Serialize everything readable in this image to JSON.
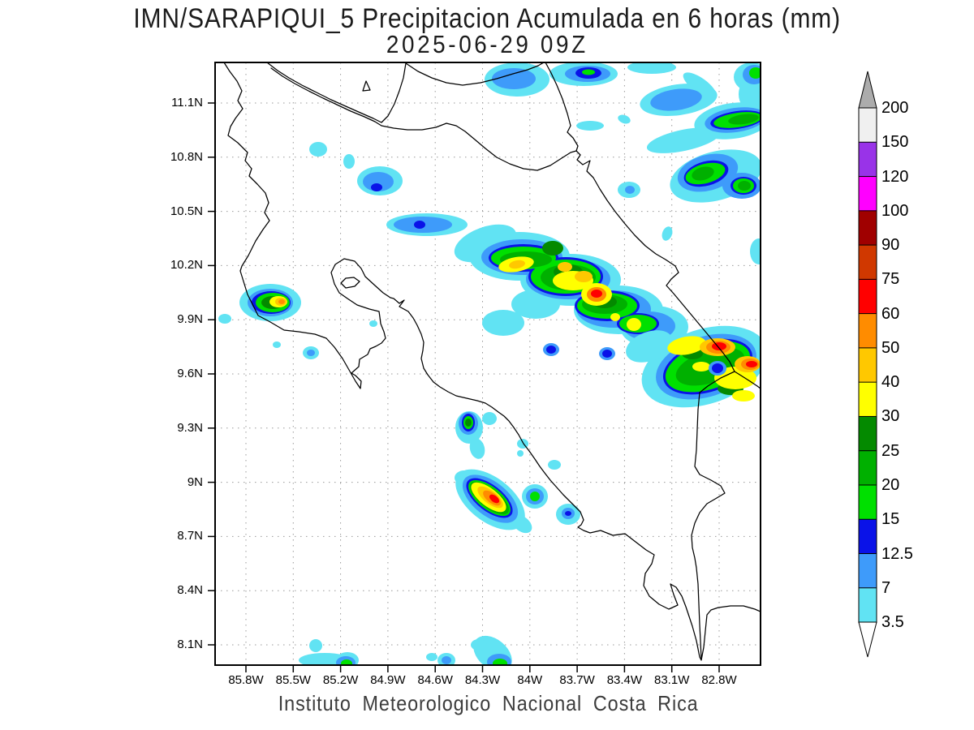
{
  "title": {
    "line1": "IMN/SARAPIQUI_5 Precipitacion Acumulada en 6 horas (mm)",
    "line2": "2025-06-29 09Z"
  },
  "footer": "Instituto Meteorologico Nacional Costa Rica",
  "axes": {
    "lat_ticks": [
      "11.1N",
      "10.8N",
      "10.5N",
      "10.2N",
      "9.9N",
      "9.6N",
      "9.3N",
      "9N",
      "8.7N",
      "8.4N",
      "8.1N"
    ],
    "lon_ticks": [
      "85.8W",
      "85.5W",
      "85.2W",
      "84.9W",
      "84.6W",
      "84.3W",
      "84W",
      "83.7W",
      "83.4W",
      "83.1W",
      "82.8W"
    ]
  },
  "colorbar": {
    "labels_top_to_bottom": [
      "200",
      "150",
      "120",
      "100",
      "90",
      "75",
      "60",
      "50",
      "40",
      "30",
      "25",
      "20",
      "15",
      "12.5",
      "7",
      "3.5"
    ],
    "segment_colors_top_to_bottom": [
      "#F0F0F0",
      "#9933E8",
      "#FF00FF",
      "#A00000",
      "#D03800",
      "#FF0000",
      "#FF8C00",
      "#FFC800",
      "#FFFF00",
      "#048A00",
      "#00B000",
      "#00E000",
      "#0A12E8",
      "#3E9BFA",
      "#61E3F3"
    ],
    "over_arrow_color": "#ACACAC",
    "under_arrow_color": "#FFFFFF"
  },
  "palette": {
    "3.5": "#61E3F3",
    "7": "#3E9BFA",
    "12.5": "#0A12E8",
    "15": "#00E000",
    "20": "#00B000",
    "25": "#048A00",
    "30": "#FFFF00",
    "40": "#FFC800",
    "50": "#FF8C00",
    "60": "#FF0000",
    "75": "#D03800",
    "90": "#A00000",
    "100": "#FF00FF",
    "120": "#9933E8",
    "150": "#F0F0F0"
  },
  "chart_data": {
    "type": "heatmap",
    "title": "IMN/SARAPIQUI_5 Precipitacion Acumulada en 6 horas (mm)",
    "subtitle": "2025-06-29 09Z",
    "region": "Costa Rica",
    "xlabel_ticks": [
      "85.8W",
      "85.5W",
      "85.2W",
      "84.9W",
      "84.6W",
      "84.3W",
      "84W",
      "83.7W",
      "83.4W",
      "83.1W",
      "82.8W"
    ],
    "ylabel_ticks": [
      "11.1N",
      "10.8N",
      "10.5N",
      "10.2N",
      "9.9N",
      "9.6N",
      "9.3N",
      "9N",
      "8.7N",
      "8.4N",
      "8.1N"
    ],
    "x_range": [
      "86.0W",
      "82.5W"
    ],
    "y_range": [
      "8.0N",
      "11.3N"
    ],
    "grid": "dotted",
    "legend_position": "right-colorbar",
    "units": "mm per 6 hours",
    "levels_mm": [
      3.5,
      7,
      12.5,
      15,
      20,
      25,
      30,
      40,
      50,
      60,
      75,
      90,
      100,
      120,
      150,
      200
    ],
    "features": [
      {
        "name": "nicoya-peninsula-cell",
        "lat": "10.00N",
        "lon": "85.57W",
        "peak_mm": "50-60"
      },
      {
        "name": "central-cordillera-band",
        "lat": "10.24N to 9.87N",
        "lon": "84.07W to 83.29W",
        "peak_mm": "60-75 (red core near 83.58W 10.04N)"
      },
      {
        "name": "limon-caribbean-cluster",
        "lat": "9.65N",
        "lon": "82.83W",
        "peak_mm": "75+ (two red cores)"
      },
      {
        "name": "south-pacific-cell",
        "lat": "8.91N",
        "lon": "84.25W",
        "peak_mm": "60-75"
      },
      {
        "name": "northern-blue-band",
        "lat": "10.43N",
        "lon": "84.68W",
        "peak_mm": "12.5-15"
      },
      {
        "name": "top-edge-cell-east",
        "lat": "11.27N",
        "lon": "83.63W",
        "peak_mm": "15-20"
      },
      {
        "name": "top-edge-cell-west",
        "lat": "11.23N",
        "lon": "84.10W",
        "peak_mm": "7-12.5"
      },
      {
        "name": "northeast-band",
        "lat": "11.01N",
        "lon": "82.70W",
        "peak_mm": "20-25"
      },
      {
        "name": "northeast-cluster",
        "lat": "10.70N",
        "lon": "82.86W",
        "peak_mm": "20-25"
      },
      {
        "name": "north-inland-blue-cell",
        "lat": "10.67N",
        "lon": "84.95W",
        "peak_mm": "12.5-15"
      },
      {
        "name": "talamanca-small-cell",
        "lat": "9.33N",
        "lon": "84.39W",
        "peak_mm": "25-30"
      },
      {
        "name": "general-viejo-cell",
        "lat": "8.92N",
        "lon": "83.97W",
        "peak_mm": "15-20"
      },
      {
        "name": "coto-brus-cell",
        "lat": "8.83N",
        "lon": "83.76W",
        "peak_mm": "12.5-15"
      },
      {
        "name": "bottom-edge-cell-west",
        "lat": "8.00N",
        "lon": "85.16W",
        "peak_mm": "15-20"
      },
      {
        "name": "bottom-edge-cell-center",
        "lat": "8.02N",
        "lon": "84.53W",
        "peak_mm": "7-12.5"
      },
      {
        "name": "bottom-edge-cell-east",
        "lat": "8.00N",
        "lon": "84.19W",
        "peak_mm": "15-20"
      }
    ]
  }
}
